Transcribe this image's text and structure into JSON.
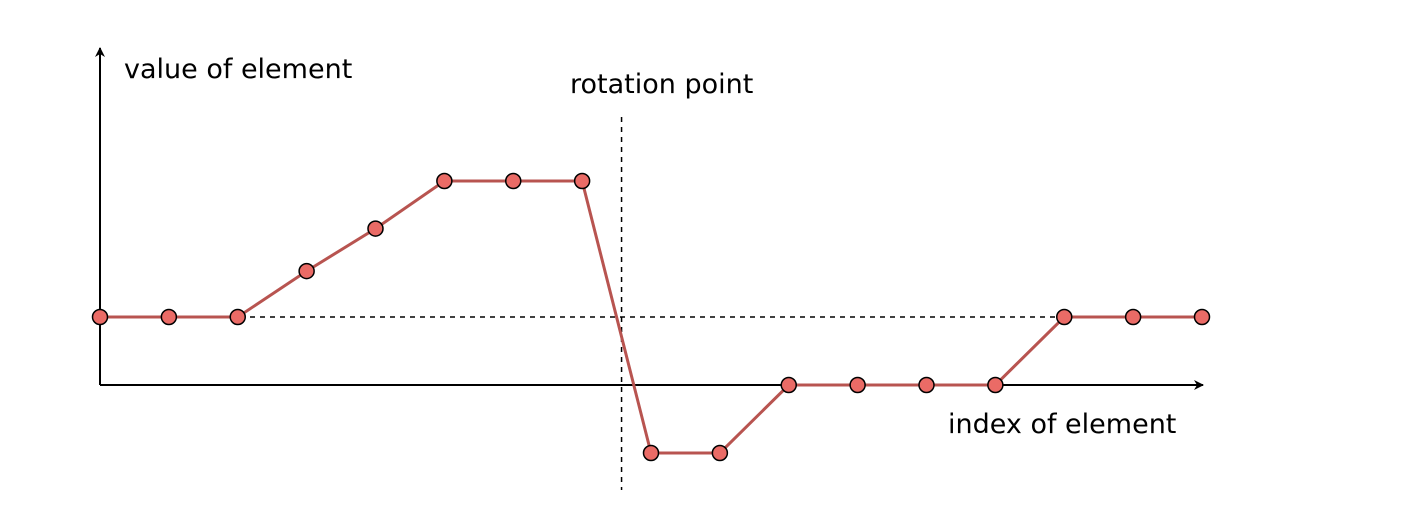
{
  "labels": {
    "y_axis": "value of element",
    "x_axis": "index of element",
    "rotation": "rotation point"
  },
  "colors": {
    "line": "#b85450",
    "point_fill": "#ea6b66",
    "point_stroke": "#000000",
    "axis": "#000000",
    "dashed": "#000000"
  },
  "chart_data": {
    "type": "line",
    "reference_value": 2,
    "rotation_after_index": 7.5,
    "points": [
      {
        "x": 0,
        "y": 2
      },
      {
        "x": 1,
        "y": 2
      },
      {
        "x": 2,
        "y": 2
      },
      {
        "x": 3,
        "y": 3.35
      },
      {
        "x": 4,
        "y": 4.6
      },
      {
        "x": 5,
        "y": 6
      },
      {
        "x": 6,
        "y": 6
      },
      {
        "x": 7,
        "y": 6
      },
      {
        "x": 8,
        "y": -2
      },
      {
        "x": 9,
        "y": -2
      },
      {
        "x": 10,
        "y": 0
      },
      {
        "x": 11,
        "y": 0
      },
      {
        "x": 12,
        "y": 0
      },
      {
        "x": 13,
        "y": 0
      },
      {
        "x": 14,
        "y": 2
      },
      {
        "x": 15,
        "y": 2
      },
      {
        "x": 16,
        "y": 2
      }
    ]
  }
}
